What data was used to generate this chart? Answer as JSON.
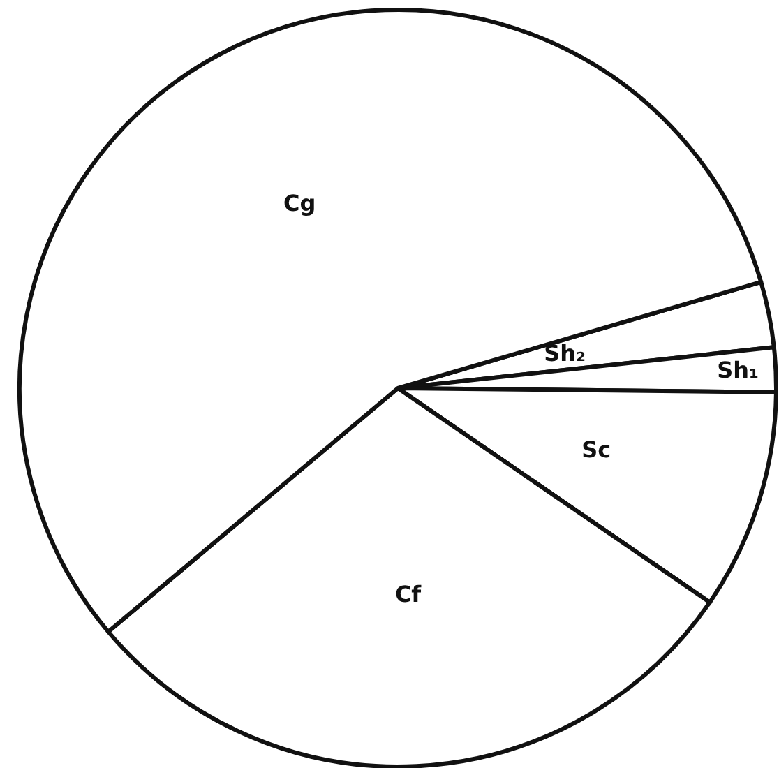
{
  "chart_data": {
    "type": "pie",
    "categories": [
      "Sh₂",
      "Sh₁",
      "Sc",
      "Cf",
      "Cg"
    ],
    "values": [
      2.8,
      1.9,
      9.4,
      29.3,
      56.6
    ],
    "colors": [
      "#ffffff",
      "#ffffff",
      "#ffffff",
      "#ffffff",
      "#ffffff"
    ]
  }
}
